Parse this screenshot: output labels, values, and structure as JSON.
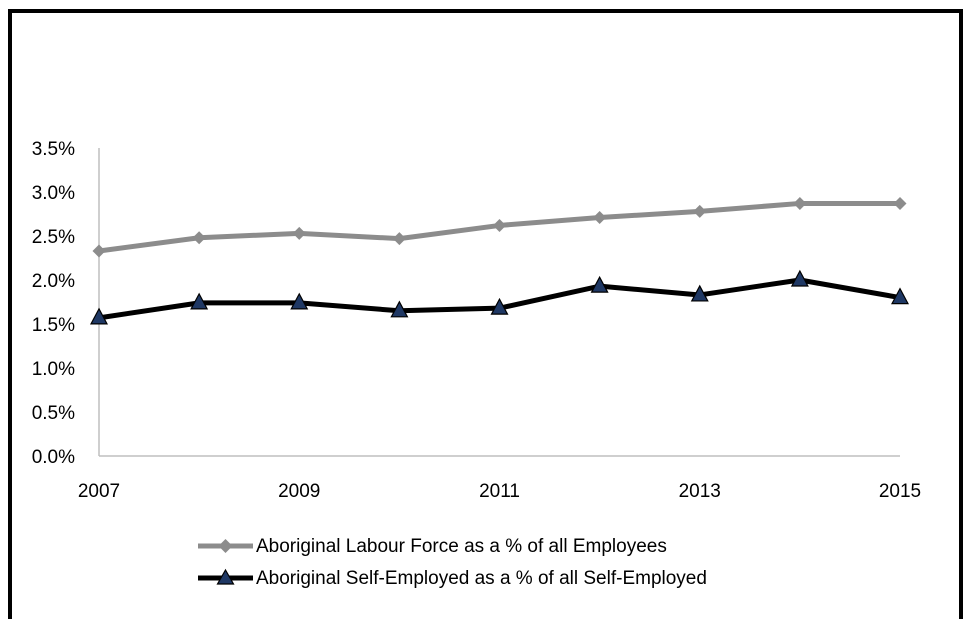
{
  "chart_data": {
    "type": "line",
    "x": [
      2007,
      2008,
      2009,
      2010,
      2011,
      2012,
      2013,
      2014,
      2015
    ],
    "x_ticks": [
      "2007",
      "2009",
      "2011",
      "2013",
      "2015"
    ],
    "y_ticks": [
      "0.0%",
      "0.5%",
      "1.0%",
      "1.5%",
      "2.0%",
      "2.5%",
      "3.0%",
      "3.5%"
    ],
    "ylim": [
      0,
      3.5
    ],
    "grid": false,
    "legend_position": "bottom",
    "series": [
      {
        "name": "Aboriginal Labour Force as a % of all Employees",
        "values": [
          2.33,
          2.48,
          2.53,
          2.47,
          2.62,
          2.71,
          2.78,
          2.87,
          2.87
        ],
        "color": "#8c8c8c",
        "marker": "diamond"
      },
      {
        "name": "Aboriginal Self-Employed as a % of all Self-Employed",
        "values": [
          1.57,
          1.74,
          1.74,
          1.65,
          1.68,
          1.93,
          1.83,
          2.0,
          1.8
        ],
        "color": "#000000",
        "marker": "triangle",
        "marker_fill": "#1f3864"
      }
    ]
  }
}
